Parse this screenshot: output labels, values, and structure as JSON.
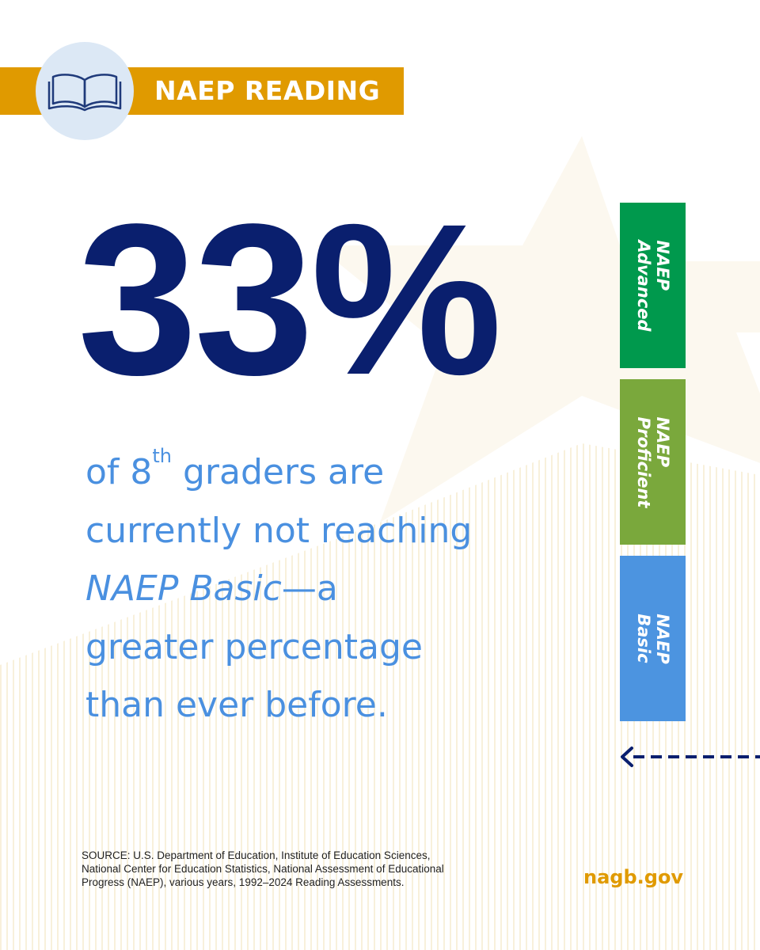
{
  "header": {
    "title": "NAEP READING"
  },
  "headline": "33%",
  "body": {
    "parts": [
      "of 8",
      "th",
      " graders are",
      "currently not reaching",
      "NAEP Basic",
      "—a",
      "greater percentage",
      "than ever before."
    ]
  },
  "levels": [
    {
      "lines": [
        "NAEP",
        "Advanced"
      ],
      "color": "#00994d"
    },
    {
      "lines": [
        "NAEP",
        "Proficient"
      ],
      "color": "#7aa83c"
    },
    {
      "lines": [
        "NAEP",
        "Basic"
      ],
      "color": "#4c94e0"
    }
  ],
  "source": {
    "lines": [
      "SOURCE: U.S. Department of Education, Institute of Education Sciences,",
      "National Center for Education Statistics, National Assessment of Educational",
      "Progress (NAEP), various years, 1992–2024 Reading Assessments."
    ]
  },
  "footer": {
    "site": "nagb.gov"
  }
}
